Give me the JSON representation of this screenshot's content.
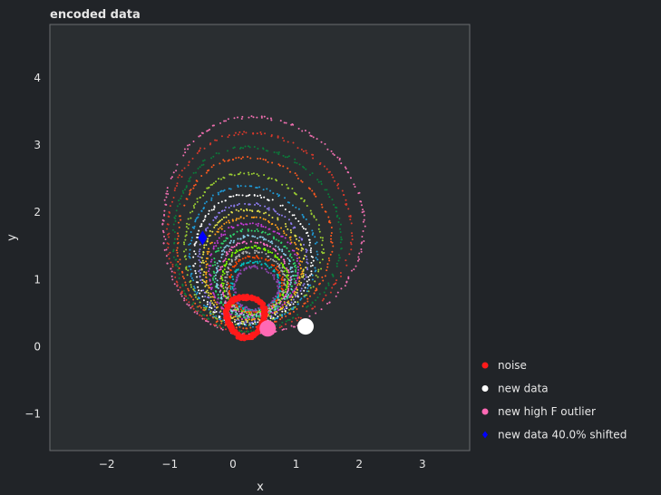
{
  "chart_data": {
    "type": "scatter",
    "title": "encoded data",
    "xlabel": "x",
    "ylabel": "y",
    "xlim": [
      -2.9,
      3.75
    ],
    "ylim": [
      -1.55,
      4.8
    ],
    "xticks": [
      -2,
      -1,
      0,
      1,
      2,
      3
    ],
    "yticks": [
      -1,
      0,
      1,
      2,
      3,
      4
    ],
    "grid": false,
    "legend_position": "lower-right",
    "background_colors": {
      "figure": "#212428",
      "axes": "#2a2e31",
      "frame": "#6a6d70"
    },
    "rings": {
      "description_colors": [
        "#ff5a1f",
        "#1f9bd8",
        "#f06fb0",
        "#8bc34a",
        "#ffffff",
        "#c23bd4",
        "#ff9f1a",
        "#2fd46c",
        "#e5e54b",
        "#8e7cf0",
        "#d64a4a",
        "#00c0c0",
        "#ff6ec7",
        "#9acd32",
        "#ff4500",
        "#87ceeb",
        "#b0b0b0",
        "#0a7d3a",
        "#ffd700",
        "#7fff00"
      ],
      "center_x": 0.35,
      "center_y": 1.35,
      "levels": [
        {
          "rx": 3.05,
          "ry": 2.95,
          "dx": -0.05,
          "dy": 0.45,
          "color": "#f06fb0"
        },
        {
          "rx": 2.8,
          "ry": 2.7,
          "dx": -0.1,
          "dy": 0.35,
          "color": "#d8392b"
        },
        {
          "rx": 2.55,
          "ry": 2.5,
          "dx": -0.12,
          "dy": 0.25,
          "color": "#0a7d3a"
        },
        {
          "rx": 2.35,
          "ry": 2.3,
          "dx": -0.15,
          "dy": 0.2,
          "color": "#ff5a1f"
        },
        {
          "rx": 2.1,
          "ry": 2.05,
          "dx": -0.15,
          "dy": 0.1,
          "color": "#9acd32"
        },
        {
          "rx": 1.95,
          "ry": 1.9,
          "dx": -0.15,
          "dy": 0.0,
          "color": "#1f9bd8"
        },
        {
          "rx": 1.8,
          "ry": 1.75,
          "dx": -0.14,
          "dy": -0.05,
          "color": "#ffffff"
        },
        {
          "rx": 1.65,
          "ry": 1.6,
          "dx": -0.13,
          "dy": -0.1,
          "color": "#8e7cf0"
        },
        {
          "rx": 1.55,
          "ry": 1.5,
          "dx": -0.12,
          "dy": -0.14,
          "color": "#e5e54b"
        },
        {
          "rx": 1.45,
          "ry": 1.38,
          "dx": -0.11,
          "dy": -0.18,
          "color": "#ff9f1a"
        },
        {
          "rx": 1.35,
          "ry": 1.28,
          "dx": -0.1,
          "dy": -0.22,
          "color": "#c23bd4"
        },
        {
          "rx": 1.25,
          "ry": 1.18,
          "dx": -0.09,
          "dy": -0.26,
          "color": "#2fd46c"
        },
        {
          "rx": 1.15,
          "ry": 1.08,
          "dx": -0.08,
          "dy": -0.3,
          "color": "#87ceeb"
        },
        {
          "rx": 1.06,
          "ry": 0.98,
          "dx": -0.07,
          "dy": -0.33,
          "color": "#ff6ec7"
        },
        {
          "rx": 0.98,
          "ry": 0.9,
          "dx": -0.06,
          "dy": -0.36,
          "color": "#7fff00"
        },
        {
          "rx": 0.9,
          "ry": 0.82,
          "dx": -0.05,
          "dy": -0.39,
          "color": "#b0b0b0"
        },
        {
          "rx": 0.82,
          "ry": 0.74,
          "dx": -0.04,
          "dy": -0.42,
          "color": "#ff4500"
        },
        {
          "rx": 0.74,
          "ry": 0.66,
          "dx": -0.03,
          "dy": -0.45,
          "color": "#00c0c0"
        },
        {
          "rx": 0.67,
          "ry": 0.58,
          "dx": -0.02,
          "dy": -0.48,
          "color": "#8e44ad"
        }
      ]
    },
    "noise_ring": {
      "cx": 0.2,
      "cy": 0.45,
      "rx": 0.3,
      "ry": 0.3,
      "color": "#ff1a1a"
    },
    "points": [
      {
        "name": "new data",
        "x": 1.15,
        "y": 0.3,
        "color": "#ffffff"
      },
      {
        "name": "new high F outlier",
        "x": 0.55,
        "y": 0.27,
        "color": "#ff69b4"
      },
      {
        "name": "new data 40.0% shifted",
        "x": -0.48,
        "y": 1.62,
        "color": "#0000ff"
      }
    ],
    "legend": [
      {
        "label": "noise",
        "color": "#ff1a1a"
      },
      {
        "label": "new data",
        "color": "#ffffff"
      },
      {
        "label": "new high F outlier",
        "color": "#ff69b4"
      },
      {
        "label": "new data 40.0% shifted",
        "color": "#0000ff"
      }
    ]
  }
}
